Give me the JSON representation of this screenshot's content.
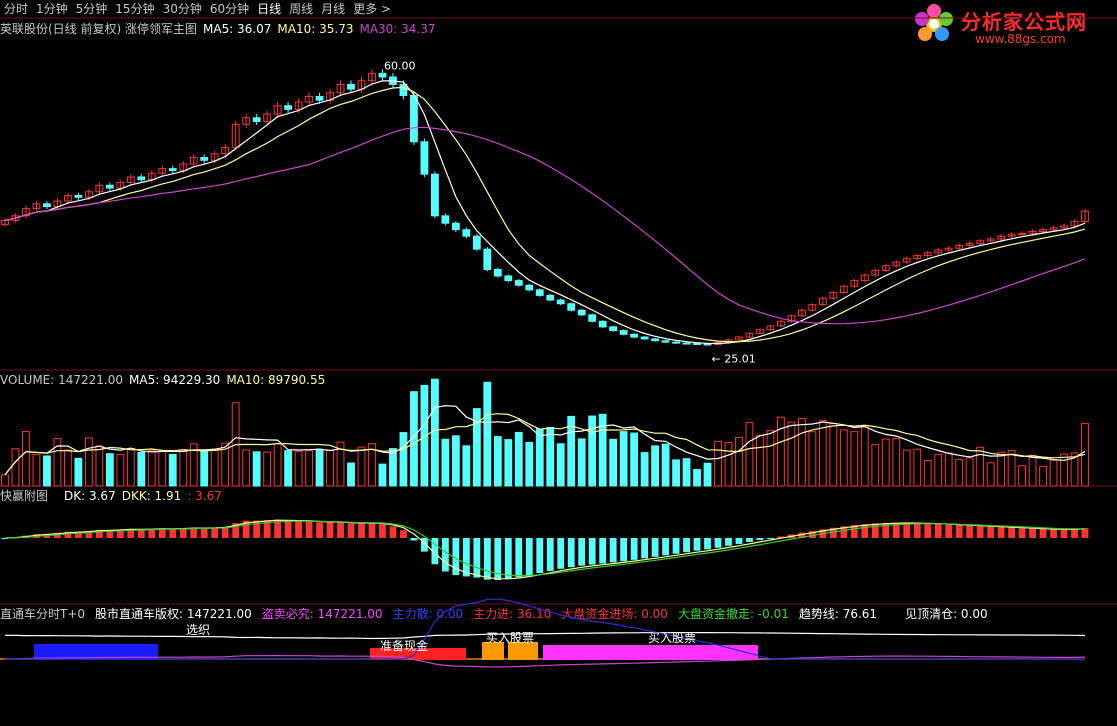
{
  "toolbar": {
    "items": [
      "分时",
      "1分钟",
      "5分钟",
      "15分钟",
      "30分钟",
      "60分钟",
      "日线",
      "周线",
      "月线",
      "更多"
    ],
    "active": "日线"
  },
  "logo": {
    "title": "分析家公式网",
    "url": "www.88gs.com"
  },
  "main_legend": {
    "title": "英联股份(日线 前复权) 涨停领军主图",
    "ma5": "MA5: 36.07",
    "ma10": "MA10: 35.73",
    "ma30": "MA30: 34.37"
  },
  "annotations": {
    "high": "60.00",
    "low": "← 25.01"
  },
  "volume_legend": {
    "vol": "VOLUME: 147221.00",
    "ma5": "MA5: 94229.30",
    "ma10": "MA10: 89790.55"
  },
  "dk_legend": {
    "name": "快赢附图",
    "dk": "DK: 3.67",
    "dkk": "DKK: 1.91",
    "val": ": 3.67"
  },
  "bottom_legend": {
    "name": "直通车分时T+0",
    "a": "股市直通车版权: 147221.00",
    "b": "盗卖必究: 147221.00",
    "c": "主力散: 0.00",
    "d": "主力进: 36.10",
    "e": "大盘资金进场: 0.00",
    "f": "大盘资金撤走: -0.01",
    "g": "趋势线: 76.61",
    "h": "见顶清仓: 0.00"
  },
  "bottom_labels": {
    "xuan": "选织",
    "buy1": "买入股票",
    "buy2": "买入股票",
    "wait": "准备现金"
  },
  "colors": {
    "up": "#ff3232",
    "down": "#54ffff",
    "ma5": "#ffffff",
    "ma10": "#ffff88",
    "ma30": "#cc44cc",
    "logo": "#ff2a2a"
  },
  "chart_data": [
    {
      "type": "candlestick",
      "title": "英联股份(日线 前复权) 涨停领军主图",
      "close": [
        21.5,
        22.0,
        22.8,
        23.3,
        23.0,
        23.6,
        24.2,
        24.0,
        24.6,
        25.3,
        25.0,
        25.6,
        26.2,
        25.9,
        26.6,
        27.1,
        26.9,
        27.6,
        28.3,
        28.0,
        28.7,
        29.4,
        31.9,
        32.6,
        32.2,
        33.0,
        33.9,
        33.5,
        34.3,
        34.9,
        34.5,
        35.3,
        36.2,
        35.7,
        36.6,
        37.4,
        37.0,
        36.2,
        35.0,
        30.0,
        26.5,
        22.0,
        21.2,
        20.5,
        19.8,
        18.4,
        16.2,
        15.5,
        15.0,
        14.5,
        14.0,
        13.4,
        12.9,
        12.5,
        11.8,
        11.3,
        10.6,
        10.0,
        9.6,
        9.2,
        8.9,
        8.7,
        8.5,
        8.35,
        8.25,
        8.2,
        8.15,
        8.1,
        8.3,
        8.6,
        8.9,
        9.3,
        9.7,
        10.1,
        10.6,
        11.2,
        11.8,
        12.4,
        13.1,
        13.7,
        14.4,
        15.0,
        15.6,
        16.1,
        16.6,
        17.0,
        17.4,
        17.7,
        18.0,
        18.3,
        18.5,
        18.8,
        19.0,
        19.3,
        19.5,
        19.8,
        20.0,
        20.1,
        20.3,
        20.5,
        20.7,
        20.9,
        21.4,
        22.5
      ],
      "ma5_last": 36.07,
      "ma10_last": 35.73,
      "ma30_last": 34.37,
      "high_label": 60.0,
      "low_label": 25.01
    },
    {
      "type": "bar",
      "title": "VOLUME",
      "last": 147221.0,
      "ma5": 94229.3,
      "ma10": 89790.55
    },
    {
      "type": "bar",
      "title": "快赢附图",
      "dk": 3.67,
      "dkk": 1.91
    }
  ]
}
